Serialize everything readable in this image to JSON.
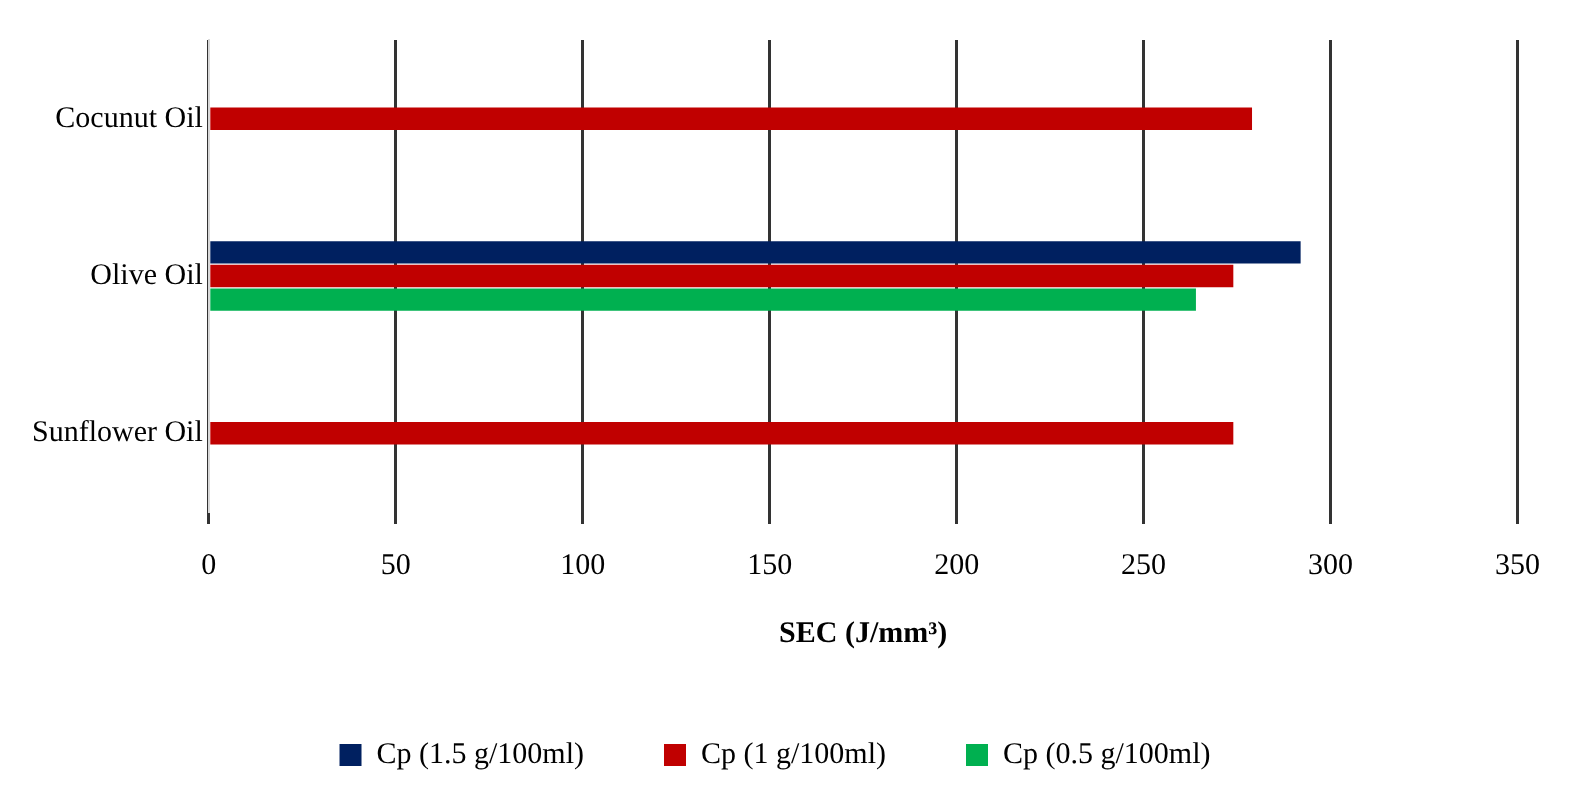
{
  "chart_data": {
    "type": "bar",
    "orientation": "horizontal",
    "categories": [
      "Cocunut Oil",
      "Olive Oil",
      "Sunflower Oil"
    ],
    "series": [
      {
        "name": "Cp (1.5 g/100ml)",
        "color": "#002060",
        "values": [
          null,
          292,
          null
        ]
      },
      {
        "name": "Cp (1 g/100ml)",
        "color": "#c00000",
        "values": [
          279,
          274,
          274
        ]
      },
      {
        "name": "Cp (0.5 g/100ml)",
        "color": "#00b050",
        "values": [
          null,
          264,
          null
        ]
      }
    ],
    "xlabel": "SEC (J/mm³)",
    "xlim": [
      0,
      350
    ],
    "xticks": [
      0,
      50,
      100,
      150,
      200,
      250,
      300,
      350
    ],
    "grid": "x",
    "legend": "bottom"
  }
}
